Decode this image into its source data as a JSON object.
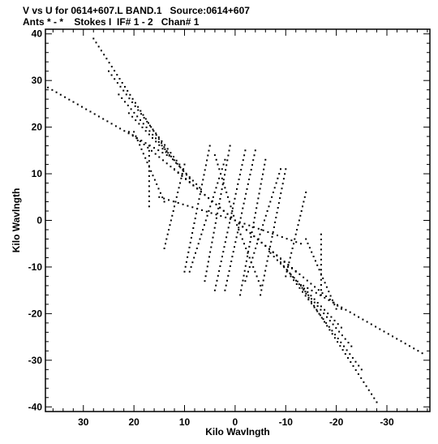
{
  "header": {
    "line1": "V vs U for 0614+607.L BAND.1   Source:0614+607",
    "line2": "Ants * - *    Stokes I  IF# 1 - 2   Chan# 1"
  },
  "chart_data": {
    "type": "scatter",
    "xlabel": "Kilo Wavlngth",
    "ylabel": "Kilo Wavlngth",
    "xlim": [
      37.5,
      -38.5
    ],
    "ylim": [
      -41,
      41
    ],
    "x_ticks": [
      30,
      20,
      10,
      0,
      -10,
      -20,
      -30
    ],
    "x_tick_labels": [
      "30",
      "20",
      "10",
      "0",
      "-10",
      "-20",
      "-30"
    ],
    "y_ticks": [
      40,
      30,
      20,
      10,
      0,
      -10,
      -20,
      -30,
      -40
    ],
    "y_tick_labels": [
      "40",
      "30",
      "20",
      "10",
      "0",
      "-10",
      "-20",
      "-30",
      "-40"
    ],
    "grid": false,
    "legend": "none",
    "marker_color": "#000000",
    "tracks": [
      {
        "x": [
          13.5,
          37
        ],
        "y": [
          14,
          28.5
        ]
      },
      {
        "x": [
          13,
          28
        ],
        "y": [
          14,
          39
        ]
      },
      {
        "x": [
          11,
          25
        ],
        "y": [
          12,
          32
        ]
      },
      {
        "x": [
          9,
          23
        ],
        "y": [
          9,
          27
        ]
      },
      {
        "x": [
          7,
          21
        ],
        "y": [
          7,
          23
        ]
      },
      {
        "x": [
          14,
          20
        ],
        "y": [
          4,
          19
        ]
      },
      {
        "x": [
          17,
          17
        ],
        "y": [
          3,
          16
        ]
      },
      {
        "x": [
          14,
          10
        ],
        "y": [
          -6,
          12
        ]
      },
      {
        "x": [
          10,
          5
        ],
        "y": [
          -11,
          16
        ]
      },
      {
        "x": [
          6,
          1
        ],
        "y": [
          -13,
          16
        ]
      },
      {
        "x": [
          2,
          -4
        ],
        "y": [
          -15,
          15
        ]
      },
      {
        "x": [
          -2,
          -9
        ],
        "y": [
          -13,
          11
        ]
      },
      {
        "x": [
          0,
          15
        ],
        "y": [
          0,
          5
        ]
      },
      {
        "x": [
          0,
          12
        ],
        "y": [
          0,
          11
        ]
      },
      {
        "x": [
          0,
          4
        ],
        "y": [
          0,
          14
        ]
      },
      {
        "x": [
          0,
          21
        ],
        "y": [
          0,
          19
        ]
      },
      {
        "x": [
          0,
          -13
        ],
        "y": [
          0,
          -5
        ]
      },
      {
        "x": [
          0,
          -5
        ],
        "y": [
          0,
          -14
        ]
      },
      {
        "x": [
          0,
          -12
        ],
        "y": [
          0,
          -11
        ]
      },
      {
        "x": [
          0,
          -21
        ],
        "y": [
          0,
          -19
        ]
      },
      {
        "x": [
          -13.5,
          -37
        ],
        "y": [
          -14,
          -28.5
        ]
      },
      {
        "x": [
          -13,
          -28
        ],
        "y": [
          -14,
          -39
        ]
      },
      {
        "x": [
          -11,
          -25
        ],
        "y": [
          -12,
          -32
        ]
      },
      {
        "x": [
          -9,
          -23
        ],
        "y": [
          -9,
          -27
        ]
      },
      {
        "x": [
          -7,
          -21
        ],
        "y": [
          -7,
          -23
        ]
      },
      {
        "x": [
          -14,
          -20
        ],
        "y": [
          -4,
          -19
        ]
      },
      {
        "x": [
          -17,
          -17
        ],
        "y": [
          -3,
          -16
        ]
      },
      {
        "x": [
          -14,
          -10
        ],
        "y": [
          6,
          -12
        ]
      },
      {
        "x": [
          -10,
          -5
        ],
        "y": [
          11,
          -16
        ]
      },
      {
        "x": [
          -6,
          -1
        ],
        "y": [
          13,
          -16
        ]
      },
      {
        "x": [
          -2,
          4
        ],
        "y": [
          15,
          -15
        ]
      },
      {
        "x": [
          2,
          9
        ],
        "y": [
          13,
          -11
        ]
      }
    ]
  }
}
